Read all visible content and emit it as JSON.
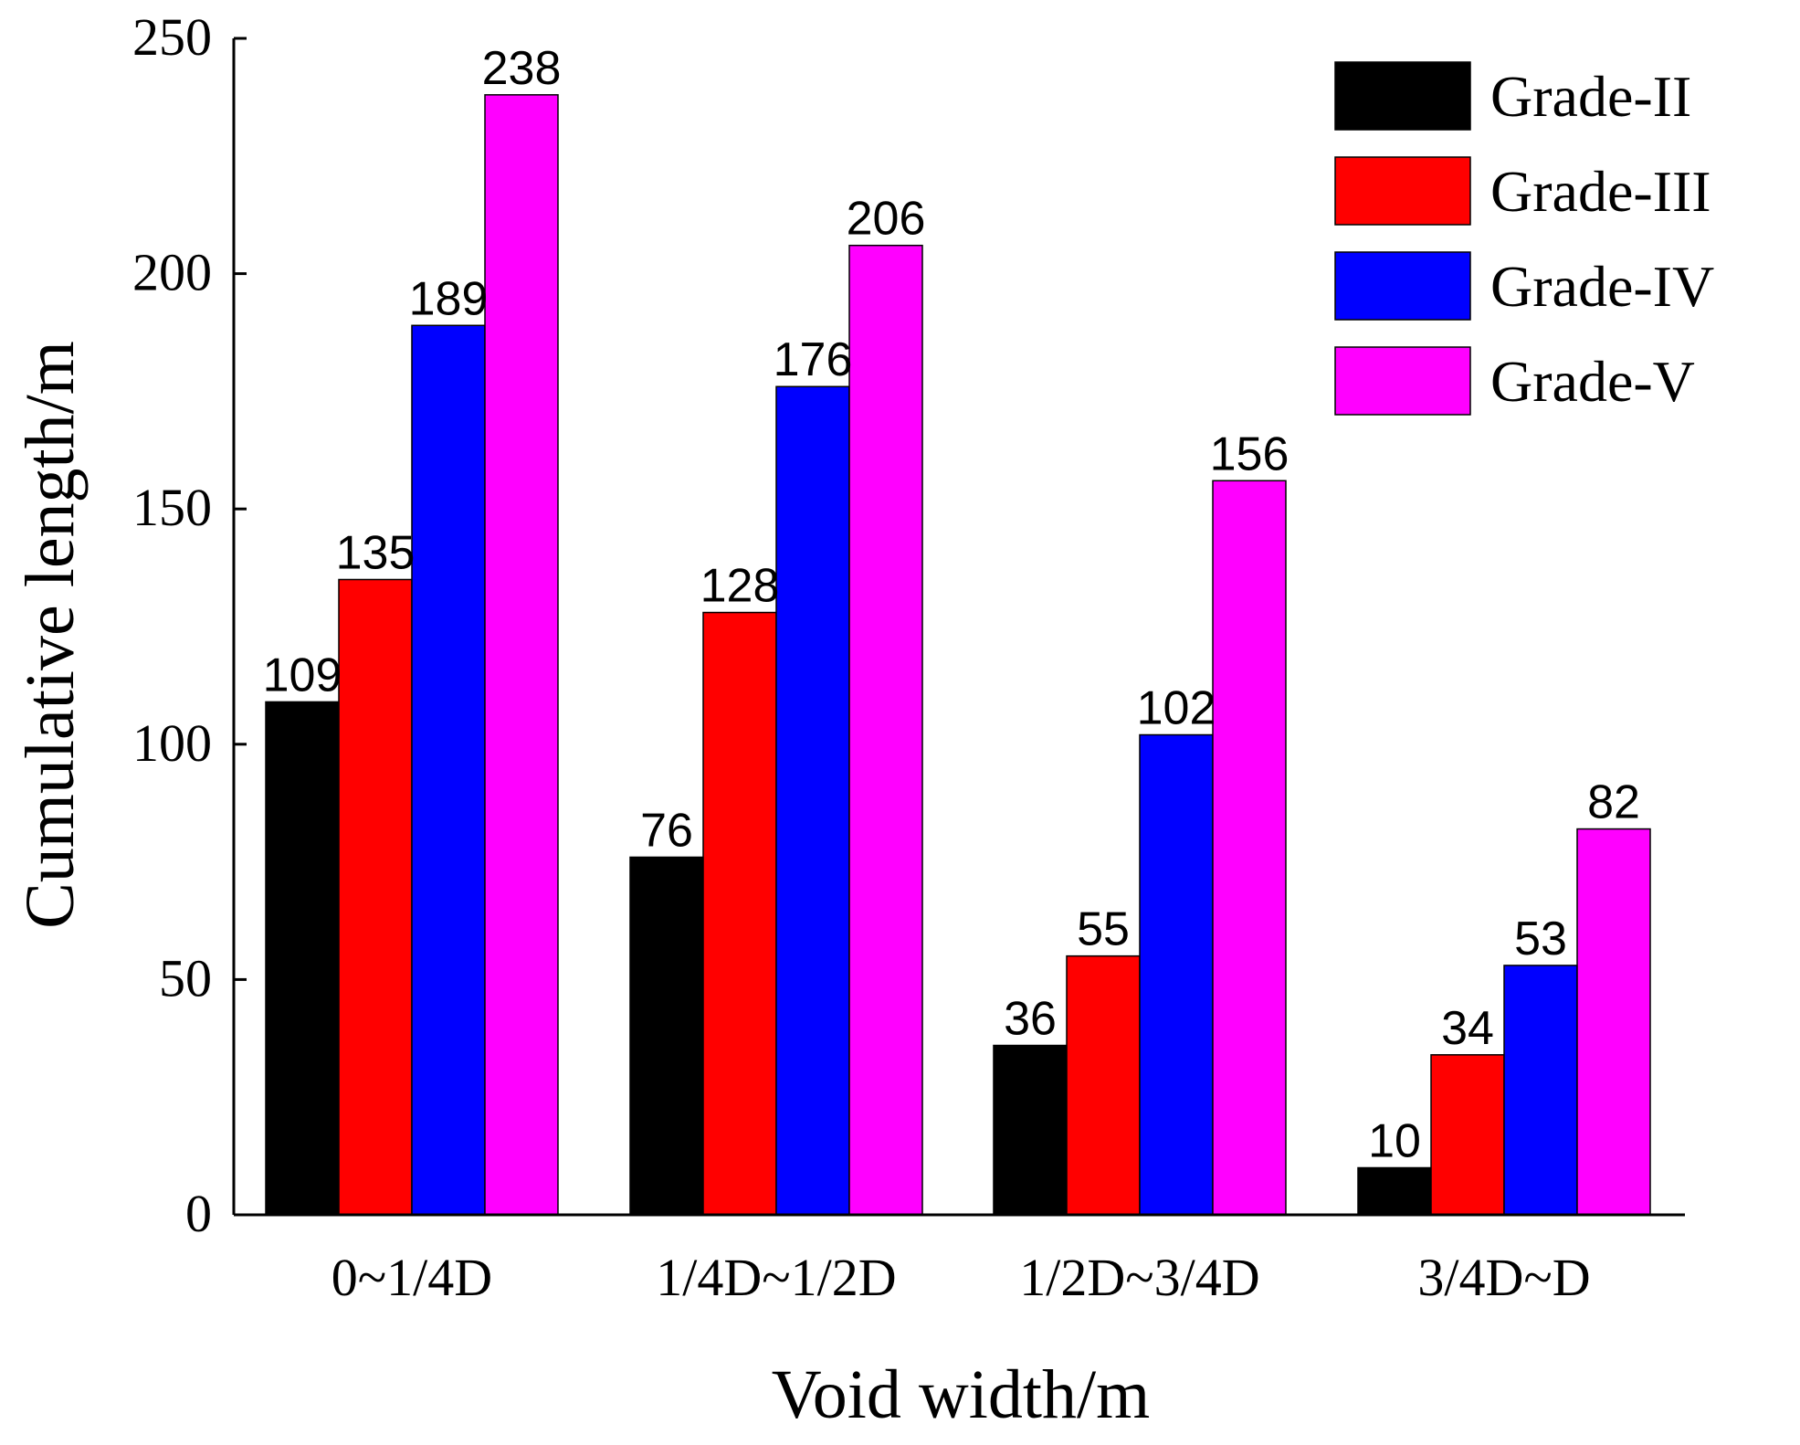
{
  "chart_data": {
    "type": "bar",
    "title": "",
    "xlabel": "Void width/m",
    "ylabel": "Cumulative length/m",
    "ylim": [
      0,
      250
    ],
    "yticks": [
      0,
      50,
      100,
      150,
      200,
      250
    ],
    "categories": [
      "0~1/4D",
      "1/4D~1/2D",
      "1/2D~3/4D",
      "3/4D~D"
    ],
    "series": [
      {
        "name": "Grade-II",
        "color": "#000000",
        "values": [
          109,
          76,
          36,
          10
        ]
      },
      {
        "name": "Grade-III",
        "color": "#ff0000",
        "values": [
          135,
          128,
          55,
          34
        ]
      },
      {
        "name": "Grade-IV",
        "color": "#0000ff",
        "values": [
          189,
          176,
          102,
          53
        ]
      },
      {
        "name": "Grade-V",
        "color": "#ff00ff",
        "values": [
          238,
          206,
          156,
          82
        ]
      }
    ],
    "legend": "top-right",
    "grid": false,
    "data_labels": true
  }
}
